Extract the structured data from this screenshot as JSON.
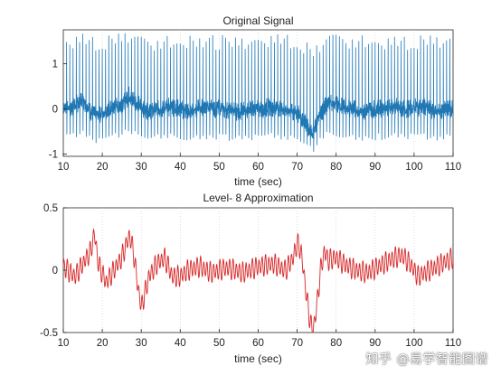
{
  "chart_data": [
    {
      "type": "line",
      "title": "Original Signal",
      "xlabel": "time (sec)",
      "ylabel": "",
      "xlim": [
        10,
        110
      ],
      "ylim": [
        -1.05,
        1.75
      ],
      "xticks": [
        10,
        20,
        30,
        40,
        50,
        60,
        70,
        80,
        90,
        100,
        110
      ],
      "yticks": [
        -1,
        0,
        1
      ],
      "grid": "vertical dotted",
      "series": [
        {
          "color": "#1f77b4",
          "description_baseline": [
            [
              10,
              0.05
            ],
            [
              12,
              0.0
            ],
            [
              14,
              0.15
            ],
            [
              15,
              0.2
            ],
            [
              17,
              -0.05
            ],
            [
              19,
              -0.15
            ],
            [
              22,
              0.0
            ],
            [
              25,
              0.1
            ],
            [
              27,
              0.3
            ],
            [
              29,
              0.1
            ],
            [
              32,
              -0.05
            ],
            [
              35,
              0.0
            ],
            [
              38,
              0.05
            ],
            [
              42,
              -0.05
            ],
            [
              46,
              0.05
            ],
            [
              50,
              0.0
            ],
            [
              55,
              -0.05
            ],
            [
              60,
              0.0
            ],
            [
              65,
              0.05
            ],
            [
              70,
              -0.1
            ],
            [
              72,
              -0.3
            ],
            [
              74,
              -0.55
            ],
            [
              76,
              -0.1
            ],
            [
              78,
              0.15
            ],
            [
              82,
              0.05
            ],
            [
              86,
              -0.05
            ],
            [
              90,
              0.0
            ],
            [
              94,
              0.05
            ],
            [
              98,
              0.0
            ],
            [
              102,
              0.05
            ],
            [
              106,
              -0.05
            ],
            [
              110,
              0.0
            ]
          ],
          "beats_per_sec": 1.2,
          "spike_peak": [
            1.3,
            1.65
          ],
          "spike_trough": [
            -0.55,
            -0.7
          ]
        }
      ]
    },
    {
      "type": "line",
      "title": "Level- 8 Approximation",
      "xlabel": "time (sec)",
      "ylabel": "",
      "xlim": [
        10,
        110
      ],
      "ylim": [
        -0.5,
        0.5
      ],
      "xticks": [
        10,
        20,
        30,
        40,
        50,
        60,
        70,
        80,
        90,
        100,
        110
      ],
      "yticks": [
        -0.5,
        0,
        0.5
      ],
      "ytick_labels": [
        "-0.5",
        "0",
        "0.5"
      ],
      "grid": "vertical dotted",
      "series": [
        {
          "color": "#d62728",
          "envelope": [
            [
              10,
              0.03
            ],
            [
              13,
              -0.05
            ],
            [
              15,
              0.05
            ],
            [
              17,
              0.15
            ],
            [
              18,
              0.3
            ],
            [
              19,
              0.05
            ],
            [
              21,
              -0.1
            ],
            [
              23,
              0.0
            ],
            [
              25,
              0.1
            ],
            [
              27,
              0.28
            ],
            [
              28,
              0.15
            ],
            [
              29,
              -0.1
            ],
            [
              30,
              -0.3
            ],
            [
              32,
              -0.05
            ],
            [
              34,
              0.05
            ],
            [
              36,
              0.1
            ],
            [
              38,
              -0.05
            ],
            [
              40,
              -0.05
            ],
            [
              42,
              0.0
            ],
            [
              45,
              0.03
            ],
            [
              48,
              -0.02
            ],
            [
              52,
              0.02
            ],
            [
              56,
              -0.02
            ],
            [
              60,
              0.03
            ],
            [
              64,
              0.05
            ],
            [
              67,
              0.0
            ],
            [
              69,
              0.1
            ],
            [
              70,
              0.22
            ],
            [
              71,
              0.15
            ],
            [
              72,
              -0.1
            ],
            [
              73,
              -0.35
            ],
            [
              74,
              -0.5
            ],
            [
              75,
              -0.3
            ],
            [
              76,
              0.0
            ],
            [
              77,
              0.15
            ],
            [
              78,
              0.08
            ],
            [
              80,
              0.1
            ],
            [
              82,
              0.05
            ],
            [
              85,
              0.0
            ],
            [
              88,
              -0.02
            ],
            [
              92,
              0.05
            ],
            [
              95,
              0.1
            ],
            [
              97,
              0.12
            ],
            [
              99,
              0.05
            ],
            [
              101,
              -0.05
            ],
            [
              104,
              0.0
            ],
            [
              107,
              0.05
            ],
            [
              110,
              0.1
            ]
          ],
          "ripple_amplitude": 0.07,
          "ripple_per_sec": 1.2
        }
      ]
    }
  ],
  "watermark": "知乎 @易学智能图谱"
}
